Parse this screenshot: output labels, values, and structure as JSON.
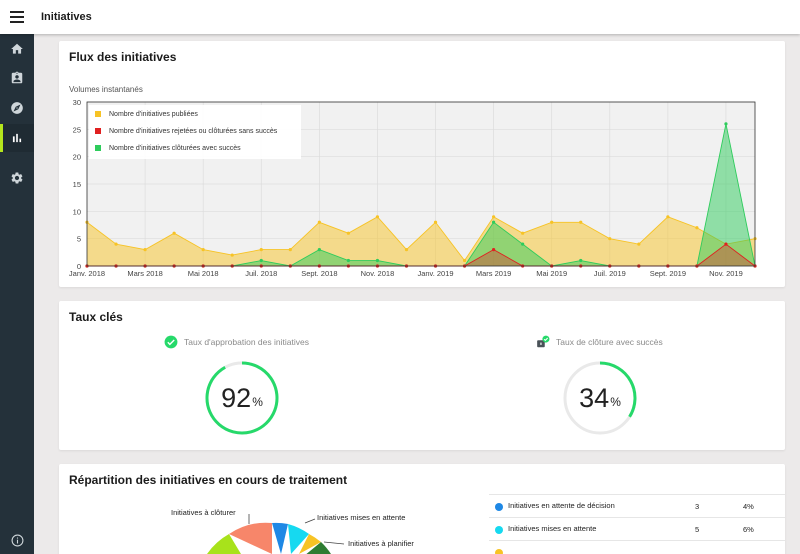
{
  "app": {
    "title": "Initiatives",
    "menu_icon": "hamburger-icon"
  },
  "sidebar": {
    "items": [
      {
        "icon": "home-icon",
        "active": false
      },
      {
        "icon": "badge-icon",
        "active": false
      },
      {
        "icon": "compass-icon",
        "active": false
      },
      {
        "icon": "bar-chart-icon",
        "active": true
      },
      {
        "icon": "gear-icon",
        "active": false
      }
    ],
    "footer_icon": "info-icon"
  },
  "flux": {
    "title": "Flux des initiatives",
    "subtitle": "Volumes instantanés",
    "colors": {
      "published": "#f7c325",
      "rejected": "#e02020",
      "success": "#2ecc5c"
    },
    "chart_data": {
      "type": "area",
      "title": "Flux des initiatives",
      "subtitle": "Volumes instantanés",
      "xlabel": "",
      "ylabel": "",
      "ylim": [
        0,
        30
      ],
      "yticks": [
        0,
        5,
        10,
        15,
        20,
        25,
        30
      ],
      "xtick_labels": [
        "Janv. 2018",
        "Mars 2018",
        "Mai 2018",
        "Juil. 2018",
        "Sept. 2018",
        "Nov. 2018",
        "Janv. 2019",
        "Mars 2019",
        "Mai 2019",
        "Juil. 2019",
        "Sept. 2019",
        "Nov. 2019"
      ],
      "grid": true,
      "legend": "top-left",
      "x": [
        "2018-01",
        "2018-02",
        "2018-03",
        "2018-04",
        "2018-05",
        "2018-06",
        "2018-07",
        "2018-08",
        "2018-09",
        "2018-10",
        "2018-11",
        "2018-12",
        "2019-01",
        "2019-02",
        "2019-03",
        "2019-04",
        "2019-05",
        "2019-06",
        "2019-07",
        "2019-08",
        "2019-09",
        "2019-10",
        "2019-11",
        "2019-12"
      ],
      "series": [
        {
          "name": "Nombre d'initiatives publiées",
          "values": [
            8,
            4,
            3,
            6,
            3,
            2,
            3,
            3,
            8,
            6,
            9,
            3,
            8,
            1,
            9,
            6,
            8,
            8,
            5,
            4,
            9,
            7,
            4,
            5
          ]
        },
        {
          "name": "Nombre d'initiatives rejetées ou clôturées sans succès",
          "values": [
            0,
            0,
            0,
            0,
            0,
            0,
            0,
            0,
            0,
            0,
            0,
            0,
            0,
            0,
            3,
            0,
            0,
            0,
            0,
            0,
            0,
            0,
            4,
            0
          ]
        },
        {
          "name": "Nombre d'initiatives clôturées avec succès",
          "values": [
            0,
            0,
            0,
            0,
            0,
            0,
            1,
            0,
            3,
            1,
            1,
            0,
            0,
            0,
            8,
            4,
            0,
            1,
            0,
            0,
            0,
            0,
            26,
            0
          ]
        }
      ]
    }
  },
  "taux": {
    "title": "Taux clés",
    "approval": {
      "label": "Taux d'approbation des initiatives",
      "value": "92",
      "unit": "%",
      "fraction": 0.92,
      "icon": "check-circle-icon"
    },
    "closure": {
      "label": "Taux de clôture avec succès",
      "value": "34",
      "unit": "%",
      "fraction": 0.34,
      "icon": "locked-check-icon"
    },
    "gauge_color": "#26d96a"
  },
  "repartition": {
    "title": "Répartition des initiatives en cours de traitement",
    "donut_labels": [
      "Initiatives à clôturer",
      "Initiatives mises en attente",
      "Initiatives à planifier"
    ],
    "rows": [
      {
        "label": "Initiatives en attente de décision",
        "count": "3",
        "percent": "4%",
        "color": "#1e88e5"
      },
      {
        "label": "Initiatives mises en attente",
        "count": "5",
        "percent": "6%",
        "color": "#16d9f0"
      },
      {
        "label": "",
        "count": "",
        "percent": "",
        "color": "#f7c325"
      }
    ]
  }
}
